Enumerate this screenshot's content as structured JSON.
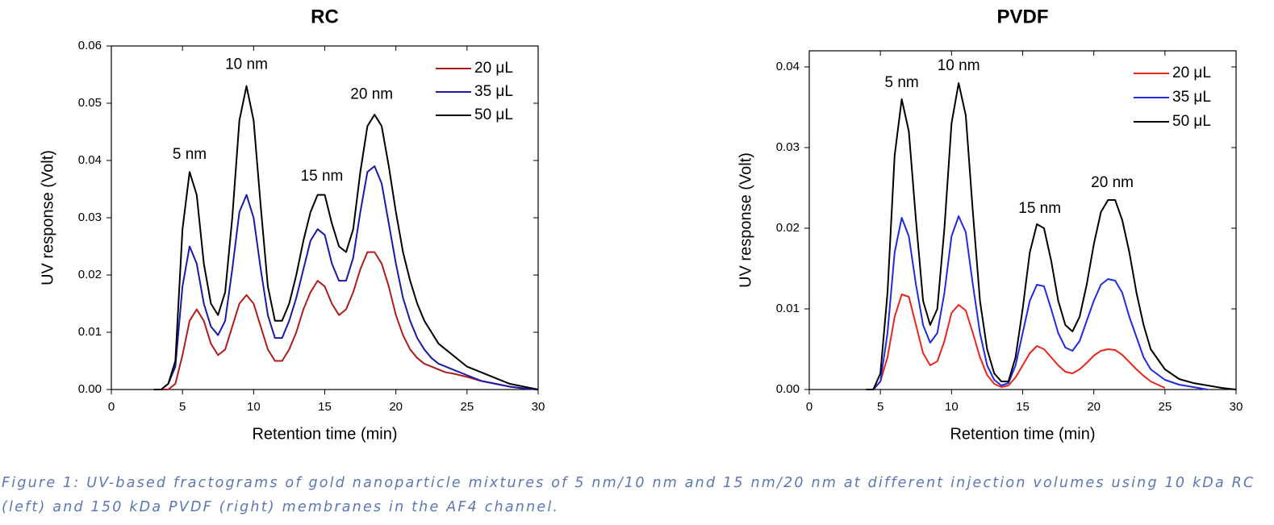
{
  "chart_data": [
    {
      "type": "line",
      "title": "RC",
      "xlabel": "Retention time (min)",
      "ylabel": "UV response (Volt)",
      "xlim": [
        0,
        30
      ],
      "ylim": [
        0,
        0.06
      ],
      "xticks": [
        0,
        5,
        10,
        15,
        20,
        25,
        30
      ],
      "yticks": [
        {
          "value": 0,
          "label": "0.00"
        },
        0.01,
        0.02,
        0.03,
        0.04,
        0.05,
        0.06
      ],
      "legend": "upper right",
      "x": [
        3,
        3.5,
        4,
        4.5,
        5,
        5.5,
        6,
        6.5,
        7,
        7.5,
        8,
        8.5,
        9,
        9.5,
        10,
        10.5,
        11,
        11.5,
        12,
        12.5,
        13,
        13.5,
        14,
        14.5,
        15,
        15.5,
        16,
        16.5,
        17,
        17.5,
        18,
        18.5,
        19,
        19.5,
        20,
        20.5,
        21,
        21.5,
        22,
        22.5,
        23,
        23.5,
        24,
        25,
        26,
        27,
        28,
        29,
        30
      ],
      "series": [
        {
          "name": "20 μL",
          "color": "#b01c1c",
          "values": [
            0,
            0,
            0,
            0.001,
            0.006,
            0.012,
            0.014,
            0.012,
            0.008,
            0.006,
            0.007,
            0.011,
            0.015,
            0.0165,
            0.015,
            0.011,
            0.007,
            0.005,
            0.005,
            0.007,
            0.01,
            0.014,
            0.017,
            0.019,
            0.018,
            0.015,
            0.013,
            0.014,
            0.017,
            0.021,
            0.024,
            0.024,
            0.022,
            0.018,
            0.013,
            0.0095,
            0.007,
            0.0055,
            0.0045,
            0.004,
            0.0035,
            0.003,
            0.0028,
            0.0022,
            0.0015,
            0.001,
            0.0005,
            0.0002,
            0
          ]
        },
        {
          "name": "35 μL",
          "color": "#1a1aa6",
          "values": [
            0,
            0,
            0.001,
            0.004,
            0.018,
            0.025,
            0.022,
            0.015,
            0.011,
            0.0095,
            0.012,
            0.021,
            0.031,
            0.034,
            0.03,
            0.021,
            0.013,
            0.009,
            0.009,
            0.012,
            0.016,
            0.021,
            0.026,
            0.028,
            0.027,
            0.022,
            0.019,
            0.019,
            0.023,
            0.031,
            0.038,
            0.039,
            0.036,
            0.029,
            0.022,
            0.016,
            0.012,
            0.009,
            0.007,
            0.0055,
            0.0045,
            0.004,
            0.0035,
            0.0025,
            0.0015,
            0.001,
            0.0005,
            0.0002,
            0
          ]
        },
        {
          "name": "50 μL",
          "color": "#000000",
          "values": [
            0,
            0,
            0.001,
            0.005,
            0.028,
            0.038,
            0.034,
            0.022,
            0.015,
            0.013,
            0.017,
            0.03,
            0.047,
            0.053,
            0.047,
            0.032,
            0.018,
            0.012,
            0.012,
            0.015,
            0.02,
            0.026,
            0.031,
            0.034,
            0.034,
            0.029,
            0.025,
            0.024,
            0.028,
            0.038,
            0.046,
            0.048,
            0.046,
            0.039,
            0.031,
            0.024,
            0.019,
            0.015,
            0.012,
            0.01,
            0.008,
            0.007,
            0.006,
            0.004,
            0.003,
            0.002,
            0.001,
            0.0005,
            0
          ]
        }
      ],
      "annotations": [
        {
          "text": "5 nm",
          "x": 5.5,
          "y": 0.041
        },
        {
          "text": "10 nm",
          "x": 9.5,
          "y": 0.0567
        },
        {
          "text": "15 nm",
          "x": 14.8,
          "y": 0.0372
        },
        {
          "text": "20 nm",
          "x": 18.3,
          "y": 0.0515
        }
      ]
    },
    {
      "type": "line",
      "title": "PVDF",
      "xlabel": "Retention time (min)",
      "ylabel": "UV response (Volt)",
      "xlim": [
        0,
        30
      ],
      "ylim": [
        0,
        0.042
      ],
      "xticks": [
        0,
        5,
        10,
        15,
        20,
        25,
        30
      ],
      "yticks": [
        {
          "value": 0,
          "label": "0.00"
        },
        0.01,
        0.02,
        0.03,
        0.04
      ],
      "legend": "upper right",
      "x": [
        4,
        4.5,
        5,
        5.5,
        6,
        6.5,
        7,
        7.5,
        8,
        8.5,
        9,
        9.5,
        10,
        10.5,
        11,
        11.5,
        12,
        12.5,
        13,
        13.5,
        14,
        14.5,
        15,
        15.5,
        16,
        16.5,
        17,
        17.5,
        18,
        18.5,
        19,
        19.5,
        20,
        20.5,
        21,
        21.5,
        22,
        22.5,
        23,
        23.5,
        24,
        25,
        26,
        27,
        28,
        29,
        30
      ],
      "series": [
        {
          "name": "20 μL",
          "color": "#e8261c",
          "values": [
            0,
            0,
            0.001,
            0.004,
            0.009,
            0.0118,
            0.0115,
            0.008,
            0.0045,
            0.003,
            0.0035,
            0.006,
            0.0095,
            0.0105,
            0.0098,
            0.007,
            0.004,
            0.0018,
            0.0007,
            0.0003,
            0.0005,
            0.0015,
            0.003,
            0.0045,
            0.0054,
            0.005,
            0.004,
            0.003,
            0.0022,
            0.002,
            0.0025,
            0.0033,
            0.0042,
            0.0048,
            0.005,
            0.0049,
            0.0043,
            0.0034,
            0.0025,
            0.0017,
            0.001,
            0.0002,
            null,
            null,
            null,
            null,
            null
          ]
        },
        {
          "name": "35 μL",
          "color": "#1f2be0",
          "values": [
            0,
            0,
            0.001,
            0.007,
            0.017,
            0.0213,
            0.019,
            0.013,
            0.008,
            0.0058,
            0.007,
            0.012,
            0.019,
            0.0215,
            0.0195,
            0.013,
            0.007,
            0.003,
            0.0012,
            0.0005,
            0.0008,
            0.003,
            0.007,
            0.011,
            0.013,
            0.0128,
            0.01,
            0.007,
            0.0052,
            0.0048,
            0.006,
            0.0085,
            0.011,
            0.013,
            0.0137,
            0.0135,
            0.012,
            0.009,
            0.0065,
            0.004,
            0.0025,
            0.0012,
            0.0006,
            0.0003,
            0,
            null,
            null
          ]
        },
        {
          "name": "50 μL",
          "color": "#000000",
          "values": [
            0,
            0,
            0.002,
            0.012,
            0.029,
            0.036,
            0.032,
            0.021,
            0.011,
            0.008,
            0.01,
            0.02,
            0.033,
            0.038,
            0.034,
            0.022,
            0.011,
            0.005,
            0.002,
            0.001,
            0.001,
            0.004,
            0.01,
            0.017,
            0.0205,
            0.02,
            0.016,
            0.011,
            0.008,
            0.0072,
            0.009,
            0.013,
            0.018,
            0.022,
            0.0235,
            0.0235,
            0.021,
            0.017,
            0.012,
            0.008,
            0.005,
            0.0025,
            0.0013,
            0.0008,
            0.0005,
            0.0002,
            0
          ]
        }
      ],
      "annotations": [
        {
          "text": "5 nm",
          "x": 6.5,
          "y": 0.038
        },
        {
          "text": "10 nm",
          "x": 10.5,
          "y": 0.0401
        },
        {
          "text": "15 nm",
          "x": 16.2,
          "y": 0.0224
        },
        {
          "text": "20 nm",
          "x": 21.3,
          "y": 0.0256
        }
      ]
    }
  ],
  "caption": "Figure 1: UV-based fractograms of gold nanoparticle mixtures of 5 nm/10 nm and 15 nm/20 nm at different injection volumes using 10 kDa RC (left) and 150 kDa PVDF (right) membranes in the AF4 channel."
}
